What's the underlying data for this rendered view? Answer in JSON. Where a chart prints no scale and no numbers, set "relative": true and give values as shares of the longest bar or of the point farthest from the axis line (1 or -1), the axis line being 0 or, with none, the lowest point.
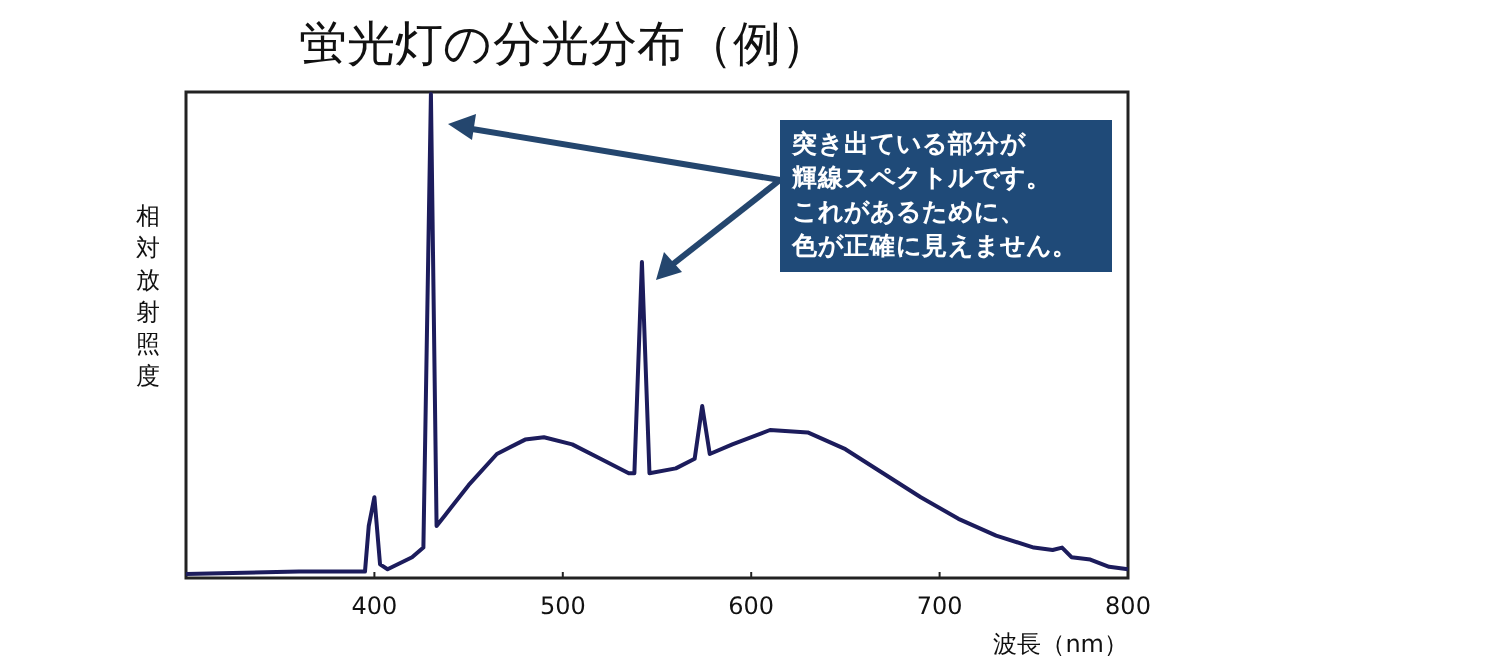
{
  "chart_data": {
    "type": "line",
    "title": "蛍光灯の分光分布（例）",
    "xlabel": "波長（nm）",
    "ylabel": "相対放射照度",
    "relative": true,
    "x": [
      300,
      360,
      395,
      397,
      400,
      403,
      407,
      420,
      426,
      430,
      433,
      437,
      450,
      465,
      480,
      490,
      505,
      520,
      535,
      538,
      542,
      546,
      560,
      570,
      574,
      578,
      590,
      610,
      630,
      650,
      670,
      690,
      710,
      730,
      750,
      760,
      765,
      770,
      780,
      790,
      800
    ],
    "series": [
      {
        "color": "#1c1c5c",
        "values": [
          0,
          0.005,
          0.005,
          0.1,
          0.16,
          0.02,
          0.01,
          0.035,
          0.055,
          1,
          0.1,
          0.12,
          0.185,
          0.25,
          0.28,
          0.285,
          0.27,
          0.24,
          0.21,
          0.21,
          0.65,
          0.21,
          0.22,
          0.24,
          0.35,
          0.25,
          0.27,
          0.3,
          0.295,
          0.26,
          0.21,
          0.16,
          0.115,
          0.08,
          0.055,
          0.05,
          0.055,
          0.035,
          0.03,
          0.015,
          0.01
        ]
      }
    ],
    "xlim": [
      300,
      800
    ],
    "xticks": [
      400,
      500,
      600,
      700,
      800
    ],
    "grid": false,
    "legend": false,
    "marker": "none",
    "line_style": "solid",
    "annotations": [
      "突き出ている部分が",
      "輝線スペクトルです。",
      "これがあるために、",
      "色が正確に見えません。"
    ]
  }
}
